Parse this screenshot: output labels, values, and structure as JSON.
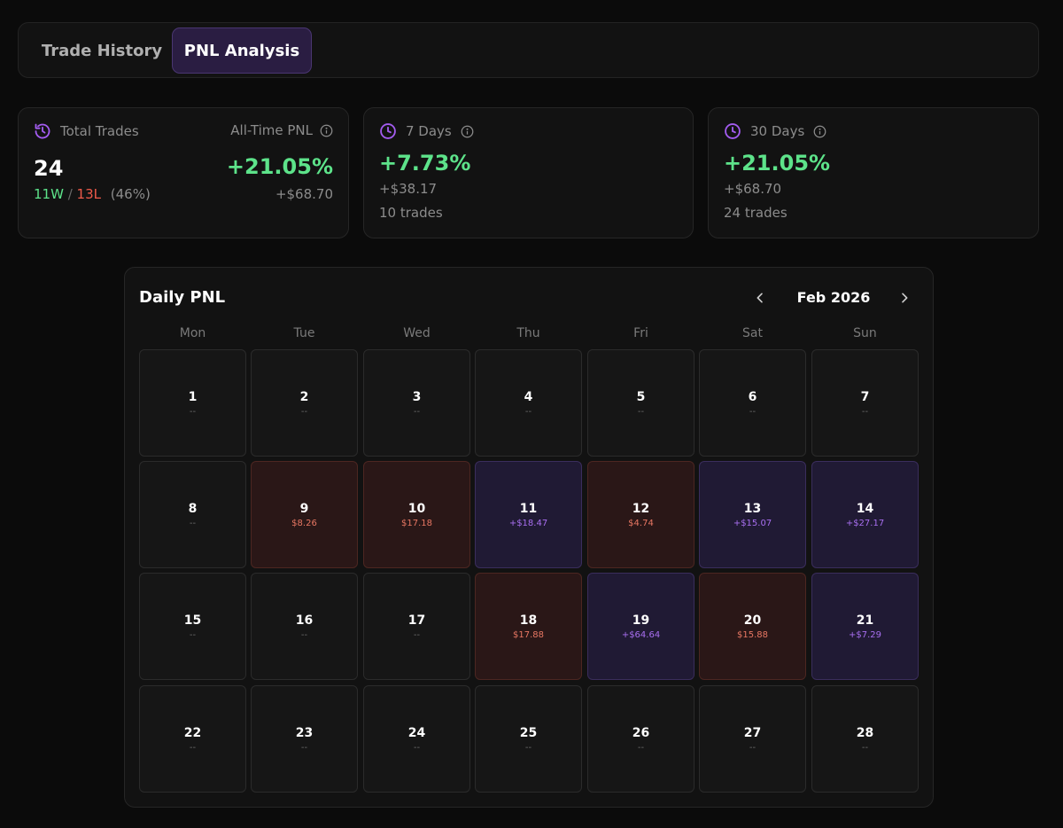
{
  "tabs": [
    {
      "label": "Trade History",
      "active": false
    },
    {
      "label": "PNL Analysis",
      "active": true
    }
  ],
  "cards": {
    "total": {
      "label": "Total Trades",
      "count": "24",
      "wins": "11W",
      "separator": "/",
      "losses": "13L",
      "win_rate": "(46%)",
      "alltime_label": "All-Time PNL",
      "alltime_pct": "+21.05%",
      "alltime_usd": "+$68.70"
    },
    "seven": {
      "label": "7 Days",
      "pct": "+7.73%",
      "usd": "+$38.17",
      "trades": "10 trades"
    },
    "thirty": {
      "label": "30 Days",
      "pct": "+21.05%",
      "usd": "+$68.70",
      "trades": "24 trades"
    }
  },
  "calendar": {
    "title": "Daily PNL",
    "month": "Feb 2026",
    "weekdays": [
      "Mon",
      "Tue",
      "Wed",
      "Thu",
      "Fri",
      "Sat",
      "Sun"
    ],
    "days": [
      {
        "day": "1",
        "value": "--",
        "status": "none"
      },
      {
        "day": "2",
        "value": "--",
        "status": "none"
      },
      {
        "day": "3",
        "value": "--",
        "status": "none"
      },
      {
        "day": "4",
        "value": "--",
        "status": "none"
      },
      {
        "day": "5",
        "value": "--",
        "status": "none"
      },
      {
        "day": "6",
        "value": "--",
        "status": "none"
      },
      {
        "day": "7",
        "value": "--",
        "status": "none"
      },
      {
        "day": "8",
        "value": "--",
        "status": "none"
      },
      {
        "day": "9",
        "value": "$8.26",
        "status": "loss"
      },
      {
        "day": "10",
        "value": "$17.18",
        "status": "loss"
      },
      {
        "day": "11",
        "value": "+$18.47",
        "status": "gain"
      },
      {
        "day": "12",
        "value": "$4.74",
        "status": "loss"
      },
      {
        "day": "13",
        "value": "+$15.07",
        "status": "gain"
      },
      {
        "day": "14",
        "value": "+$27.17",
        "status": "gain"
      },
      {
        "day": "15",
        "value": "--",
        "status": "none"
      },
      {
        "day": "16",
        "value": "--",
        "status": "none"
      },
      {
        "day": "17",
        "value": "--",
        "status": "none"
      },
      {
        "day": "18",
        "value": "$17.88",
        "status": "loss"
      },
      {
        "day": "19",
        "value": "+$64.64",
        "status": "gain"
      },
      {
        "day": "20",
        "value": "$15.88",
        "status": "loss"
      },
      {
        "day": "21",
        "value": "+$7.29",
        "status": "gain"
      },
      {
        "day": "22",
        "value": "--",
        "status": "none"
      },
      {
        "day": "23",
        "value": "--",
        "status": "none"
      },
      {
        "day": "24",
        "value": "--",
        "status": "none"
      },
      {
        "day": "25",
        "value": "--",
        "status": "none"
      },
      {
        "day": "26",
        "value": "--",
        "status": "none"
      },
      {
        "day": "27",
        "value": "--",
        "status": "none"
      },
      {
        "day": "28",
        "value": "--",
        "status": "none"
      }
    ]
  }
}
